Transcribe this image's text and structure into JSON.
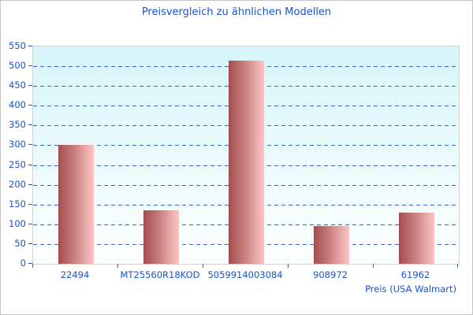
{
  "chart_data": {
    "type": "bar",
    "title": "Preisvergleich zu ähnlichen Modellen",
    "categories": [
      "22494",
      "MT25560R18KOD",
      "5059914003084",
      "908972",
      "61962"
    ],
    "values": [
      300,
      135,
      515,
      95,
      130
    ],
    "xlabel": "Preis (USA Walmart)",
    "ylabel": "",
    "ylim": [
      0,
      550
    ],
    "ytick_step": 50,
    "grid": "horizontal-dashed",
    "legend": "none"
  },
  "colors": {
    "title_text": "#1a53cc",
    "tick_text": "#1a53cc",
    "gridline": "#3c64c8",
    "tick_mark": "#2a5ac0",
    "bar_dark": "#a34e4e",
    "bar_light": "#fbc4c4",
    "plot_bg_top": "#d7f5fa",
    "plot_bg_bottom": "#fdffff",
    "plot_border": "#d3d3d3",
    "outer_border": "#c4c4c4"
  }
}
